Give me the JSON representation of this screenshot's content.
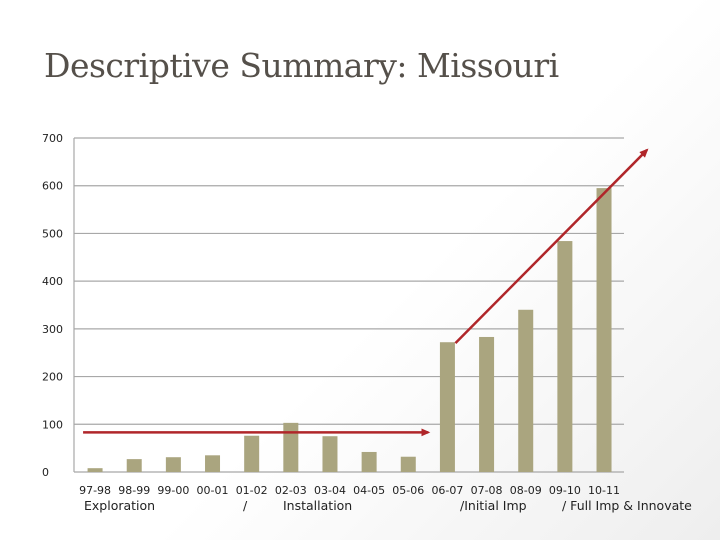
{
  "slide": {
    "title": "Descriptive Summary: Missouri"
  },
  "chart_data": {
    "type": "bar",
    "categories": [
      "97-98",
      "98-99",
      "99-00",
      "00-01",
      "01-02",
      "02-03",
      "03-04",
      "04-05",
      "05-06",
      "06-07",
      "07-08",
      "08-09",
      "09-10",
      "10-11"
    ],
    "values": [
      8,
      27,
      31,
      35,
      76,
      103,
      75,
      42,
      32,
      272,
      283,
      340,
      484,
      595
    ],
    "ylim": [
      0,
      700
    ],
    "yticks": [
      0,
      100,
      200,
      300,
      400,
      500,
      600,
      700
    ],
    "grid": true,
    "bar_color": "#aaa57f",
    "phase_labels": [
      "Exploration",
      "/",
      "Installation",
      "/Initial Imp",
      "/ Full Imp & Innovate"
    ],
    "annotations": {
      "flat_trend_arrow": {
        "from": [
          "97-98",
          83
        ],
        "to": [
          "05-06",
          83
        ],
        "color": "#b0262a"
      },
      "growth_trend_arrow": {
        "from": [
          "06-07",
          270
        ],
        "to": [
          "10-11",
          675
        ],
        "color": "#b0262a"
      }
    }
  }
}
